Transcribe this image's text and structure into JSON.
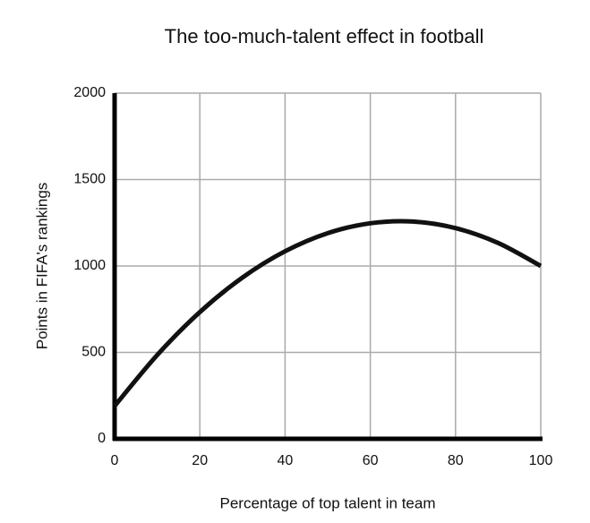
{
  "chart_data": {
    "type": "line",
    "title": "The too-much-talent effect in football",
    "x_label": "Percentage of top talent in team",
    "y_label": "Points in FIFA's rankings",
    "x": [
      0,
      10,
      20,
      30,
      40,
      50,
      60,
      70,
      80,
      90,
      100
    ],
    "series": [
      {
        "name": "Points",
        "color": "#111111",
        "values": [
          190,
          485,
          733,
          933,
          1085,
          1190,
          1247,
          1257,
          1219,
          1133,
          1000
        ]
      }
    ],
    "xlim": [
      0,
      100
    ],
    "xticks": [
      0,
      20,
      40,
      60,
      80,
      100
    ],
    "ylim": [
      0,
      2000
    ],
    "yticks": [
      0,
      500,
      1000,
      1500,
      2000
    ],
    "grid": true
  }
}
